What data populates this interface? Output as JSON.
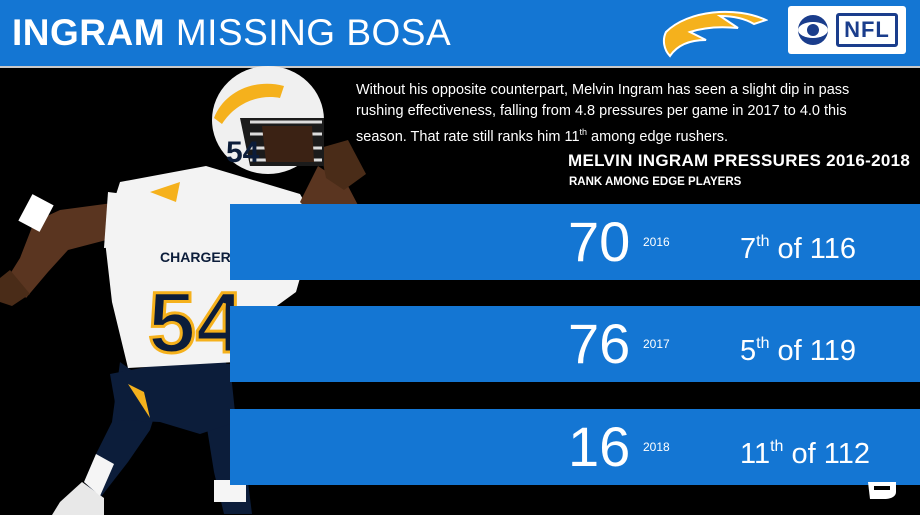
{
  "header": {
    "title_bold": "INGRAM",
    "title_light": "MISSING BOSA",
    "background": "#1476d3"
  },
  "logos": {
    "team": "chargers-bolt-logo",
    "network": "cbs-nfl-logo",
    "network_text": "NFL"
  },
  "blurb": {
    "before": "Without his opposite counterpart, Melvin Ingram has seen a slight dip in pass rushing effectiveness, falling from 4.8 pressures per game in 2017 to 4.0 this season.  That rate still ranks him 11",
    "sup": "th",
    "after": " among edge rushers."
  },
  "table": {
    "title": "MELVIN INGRAM PRESSURES 2016-2018",
    "subtitle": "RANK AMONG EDGE PLAYERS",
    "rows": [
      {
        "value": "70",
        "year": "2016",
        "rank": "7",
        "rank_suffix": "th",
        "rank_of": " of 116"
      },
      {
        "value": "76",
        "year": "2017",
        "rank": "5",
        "rank_suffix": "th",
        "rank_of": " of 119"
      },
      {
        "value": "16",
        "year": "2018",
        "rank": "11",
        "rank_suffix": "th",
        "rank_of": " of 112"
      }
    ]
  },
  "player": {
    "jersey_number": "54",
    "jersey_text": "CHARGERS"
  },
  "colors": {
    "accent_blue": "#1476d3",
    "background": "#000000",
    "bolt_gold": "#f5b11c"
  }
}
